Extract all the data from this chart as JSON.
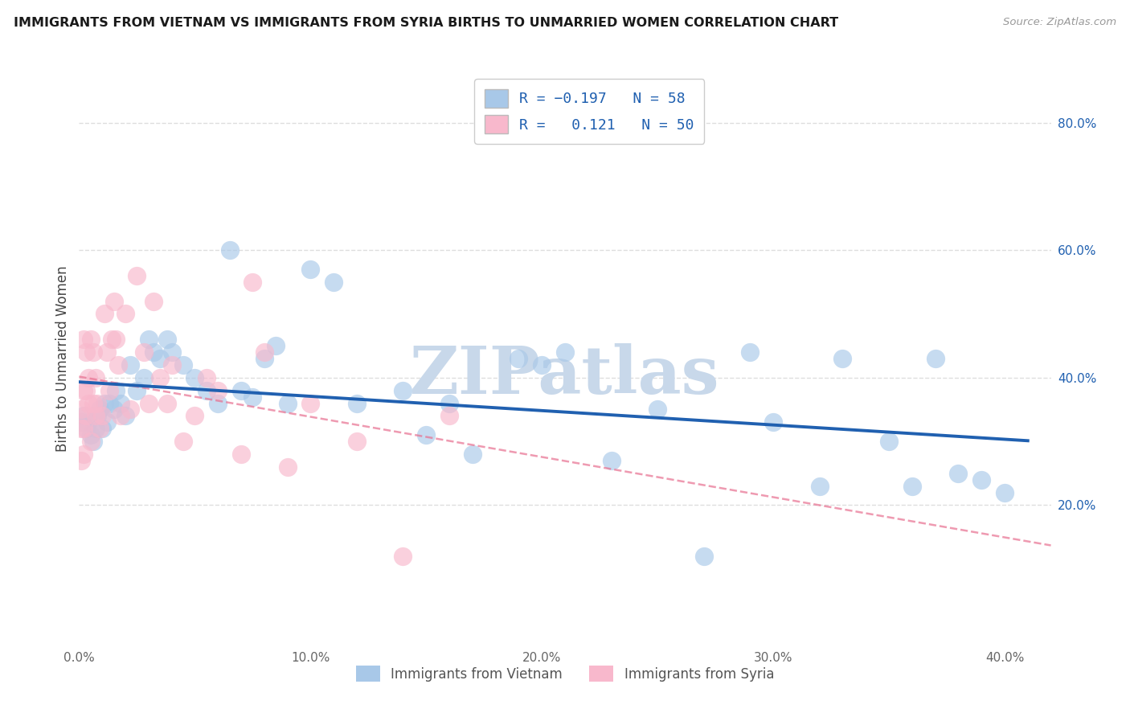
{
  "title": "IMMIGRANTS FROM VIETNAM VS IMMIGRANTS FROM SYRIA BIRTHS TO UNMARRIED WOMEN CORRELATION CHART",
  "source": "Source: ZipAtlas.com",
  "ylabel": "Births to Unmarried Women",
  "xlim": [
    0.0,
    0.42
  ],
  "ylim": [
    -0.02,
    0.88
  ],
  "xtick_labels": [
    "0.0%",
    "10.0%",
    "20.0%",
    "30.0%",
    "40.0%"
  ],
  "xtick_vals": [
    0.0,
    0.1,
    0.2,
    0.3,
    0.4
  ],
  "ytick_labels_right": [
    "20.0%",
    "40.0%",
    "60.0%",
    "80.0%"
  ],
  "ytick_vals_right": [
    0.2,
    0.4,
    0.6,
    0.8
  ],
  "r_vietnam": -0.197,
  "n_vietnam": 58,
  "r_syria": 0.121,
  "n_syria": 50,
  "vietnam_color": "#a8c8e8",
  "vietnam_line_color": "#2060b0",
  "syria_color": "#f8b8cc",
  "syria_line_color": "#e87090",
  "vietnam_scatter_x": [
    0.001,
    0.002,
    0.003,
    0.004,
    0.005,
    0.006,
    0.007,
    0.008,
    0.009,
    0.01,
    0.011,
    0.012,
    0.013,
    0.015,
    0.016,
    0.018,
    0.02,
    0.022,
    0.025,
    0.028,
    0.03,
    0.032,
    0.035,
    0.038,
    0.04,
    0.045,
    0.05,
    0.055,
    0.06,
    0.065,
    0.07,
    0.075,
    0.08,
    0.085,
    0.09,
    0.1,
    0.11,
    0.12,
    0.14,
    0.15,
    0.16,
    0.17,
    0.19,
    0.2,
    0.21,
    0.23,
    0.25,
    0.27,
    0.29,
    0.3,
    0.32,
    0.33,
    0.35,
    0.36,
    0.37,
    0.38,
    0.39,
    0.4
  ],
  "vietnam_scatter_y": [
    0.33,
    0.34,
    0.32,
    0.33,
    0.31,
    0.3,
    0.32,
    0.34,
    0.35,
    0.32,
    0.36,
    0.33,
    0.36,
    0.35,
    0.38,
    0.36,
    0.34,
    0.42,
    0.38,
    0.4,
    0.46,
    0.44,
    0.43,
    0.46,
    0.44,
    0.42,
    0.4,
    0.38,
    0.36,
    0.6,
    0.38,
    0.37,
    0.43,
    0.45,
    0.36,
    0.57,
    0.55,
    0.36,
    0.38,
    0.31,
    0.36,
    0.28,
    0.43,
    0.42,
    0.44,
    0.27,
    0.35,
    0.12,
    0.44,
    0.33,
    0.23,
    0.43,
    0.3,
    0.23,
    0.43,
    0.25,
    0.24,
    0.22
  ],
  "syria_scatter_x": [
    0.001,
    0.001,
    0.001,
    0.002,
    0.002,
    0.002,
    0.002,
    0.003,
    0.003,
    0.003,
    0.004,
    0.004,
    0.005,
    0.005,
    0.006,
    0.006,
    0.007,
    0.007,
    0.008,
    0.009,
    0.01,
    0.011,
    0.012,
    0.013,
    0.014,
    0.015,
    0.016,
    0.017,
    0.018,
    0.02,
    0.022,
    0.025,
    0.028,
    0.03,
    0.032,
    0.035,
    0.038,
    0.04,
    0.045,
    0.05,
    0.055,
    0.06,
    0.07,
    0.075,
    0.08,
    0.09,
    0.1,
    0.12,
    0.14,
    0.16
  ],
  "syria_scatter_y": [
    0.32,
    0.35,
    0.27,
    0.46,
    0.38,
    0.32,
    0.28,
    0.44,
    0.38,
    0.34,
    0.4,
    0.36,
    0.46,
    0.3,
    0.44,
    0.36,
    0.4,
    0.34,
    0.36,
    0.32,
    0.34,
    0.5,
    0.44,
    0.38,
    0.46,
    0.52,
    0.46,
    0.42,
    0.34,
    0.5,
    0.35,
    0.56,
    0.44,
    0.36,
    0.52,
    0.4,
    0.36,
    0.42,
    0.3,
    0.34,
    0.4,
    0.38,
    0.28,
    0.55,
    0.44,
    0.26,
    0.36,
    0.3,
    0.12,
    0.34
  ],
  "background_color": "#ffffff",
  "grid_color": "#dedede",
  "watermark_text": "ZIPatlas",
  "watermark_color": "#c8d8ea",
  "legend_label_vietnam": "Immigrants from Vietnam",
  "legend_label_syria": "Immigrants from Syria"
}
